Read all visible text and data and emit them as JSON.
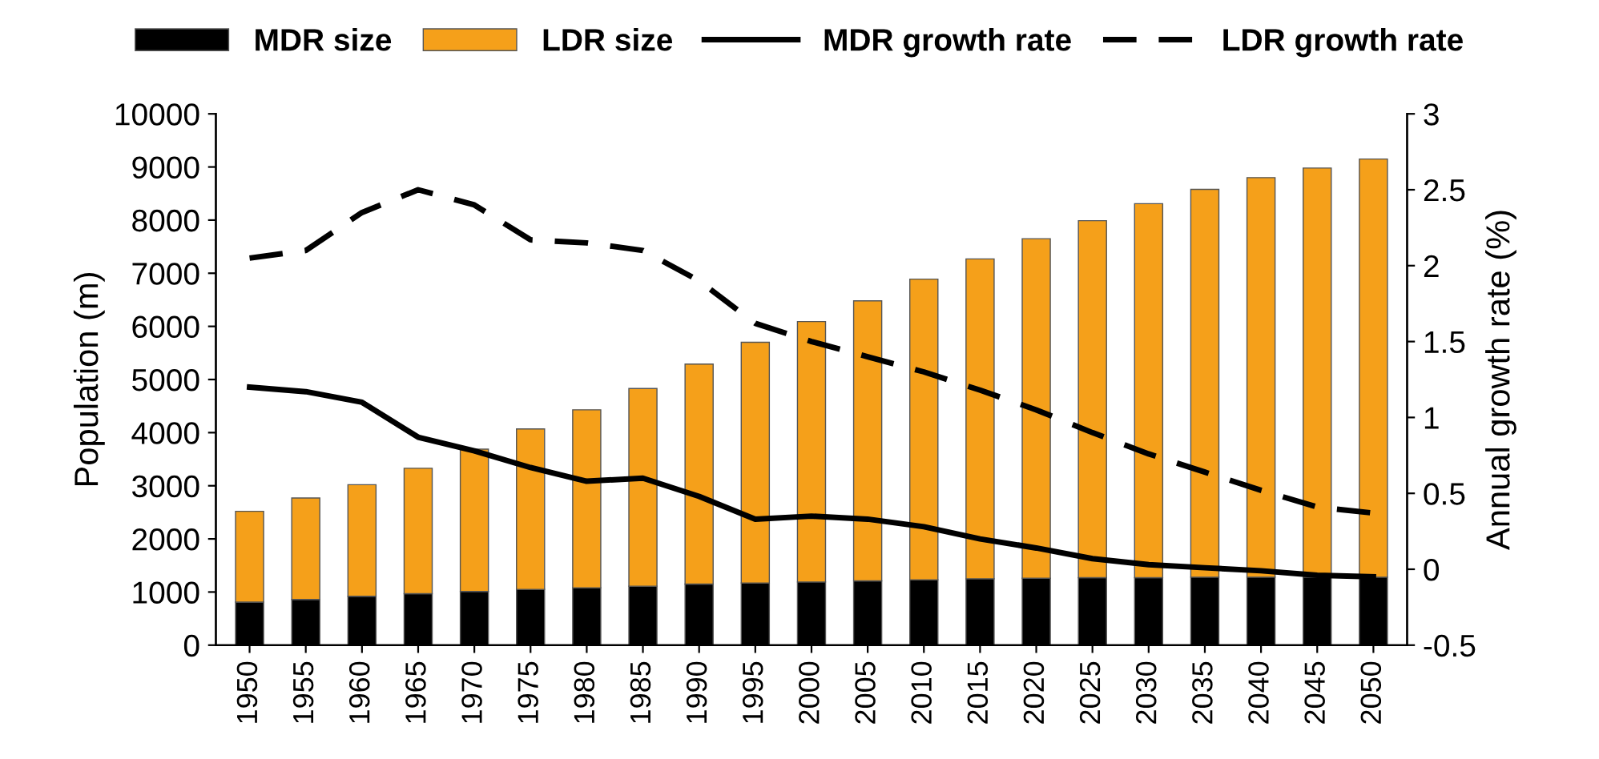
{
  "chart_data": {
    "type": "bar",
    "stacked": true,
    "legend": "top",
    "grid": false,
    "ylabel": "Population (m)",
    "y2label": "Annual growth rate (%)",
    "categories": [
      "1950",
      "1955",
      "1960",
      "1965",
      "1970",
      "1975",
      "1980",
      "1985",
      "1990",
      "1995",
      "2000",
      "2005",
      "2010",
      "2015",
      "2020",
      "2025",
      "2030",
      "2035",
      "2040",
      "2045",
      "2050"
    ],
    "ylim": [
      0,
      10000
    ],
    "yticks": [
      0,
      1000,
      2000,
      3000,
      4000,
      5000,
      6000,
      7000,
      8000,
      9000,
      10000
    ],
    "y2lim": [
      -0.5,
      3
    ],
    "y2ticks": [
      -0.5,
      0,
      0.5,
      1,
      1.5,
      2,
      2.5,
      3
    ],
    "series": [
      {
        "name": "MDR size",
        "color": "#000000",
        "values": [
          810,
          860,
          920,
          970,
          1010,
          1050,
          1080,
          1110,
          1150,
          1170,
          1190,
          1210,
          1230,
          1250,
          1260,
          1270,
          1270,
          1280,
          1280,
          1280,
          1280
        ]
      },
      {
        "name": "LDR size",
        "color": "#f5a01a",
        "values": [
          1710,
          1910,
          2100,
          2360,
          2680,
          3020,
          3350,
          3720,
          4140,
          4530,
          4900,
          5270,
          5660,
          6020,
          6390,
          6720,
          7040,
          7300,
          7520,
          7700,
          7870
        ]
      },
      {
        "name": "MDR growth rate",
        "type": "line",
        "axis": "y2",
        "color": "#000000",
        "line_style": "solid",
        "values": [
          1.2,
          1.17,
          1.1,
          0.87,
          0.78,
          0.67,
          0.58,
          0.6,
          0.48,
          0.33,
          0.35,
          0.33,
          0.28,
          0.2,
          0.14,
          0.07,
          0.03,
          0.01,
          -0.01,
          -0.04,
          -0.05
        ]
      },
      {
        "name": "LDR growth rate",
        "type": "line",
        "axis": "y2",
        "color": "#000000",
        "line_style": "dashed",
        "values": [
          2.05,
          2.1,
          2.35,
          2.5,
          2.4,
          2.17,
          2.15,
          2.1,
          1.9,
          1.62,
          1.5,
          1.4,
          1.3,
          1.18,
          1.05,
          0.9,
          0.76,
          0.64,
          0.52,
          0.41,
          0.37
        ]
      }
    ]
  }
}
